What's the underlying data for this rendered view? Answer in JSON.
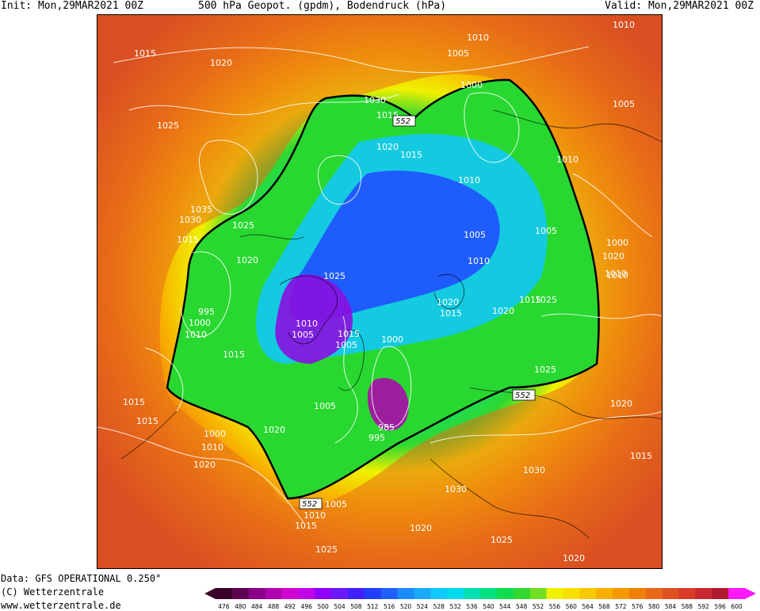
{
  "header": {
    "init": "Init: Mon,29MAR2021 00Z",
    "title": "500 hPa Geopot. (gpdm), Bodendruck (hPa)",
    "valid": "Valid: Mon,29MAR2021 00Z"
  },
  "footer": {
    "data": "Data: GFS OPERATIONAL 0.250°",
    "copyright": "(C) Wetterzentrale",
    "url": "www.wetterzentrale.de"
  },
  "colorbar": {
    "levels": [
      "476",
      "480",
      "484",
      "488",
      "492",
      "496",
      "500",
      "504",
      "508",
      "512",
      "516",
      "520",
      "524",
      "528",
      "532",
      "536",
      "540",
      "544",
      "548",
      "552",
      "556",
      "560",
      "564",
      "568",
      "572",
      "576",
      "580",
      "584",
      "588",
      "592",
      "596",
      "600"
    ],
    "colors": [
      "#3a0028",
      "#5e0050",
      "#8a0088",
      "#b000b0",
      "#d000d0",
      "#c000e8",
      "#9000ff",
      "#6a1aff",
      "#4020ff",
      "#2040ff",
      "#2060ff",
      "#1a8cff",
      "#19aaff",
      "#10c8ff",
      "#00dcee",
      "#00e0b0",
      "#00e080",
      "#10dc50",
      "#30d830",
      "#70e020",
      "#f0f000",
      "#f8e000",
      "#f8c800",
      "#f8b000",
      "#f89800",
      "#f08000",
      "#e86818",
      "#e05020",
      "#d83c28",
      "#c82830",
      "#b01830",
      "#ff1aff"
    ]
  },
  "map": {
    "contour_552_label": "552",
    "isobar_labels": [
      "1010",
      "1015",
      "1020",
      "1025",
      "1030",
      "1035",
      "1005",
      "1000",
      "995",
      "985"
    ],
    "labels": [
      {
        "text": "1015"
      },
      {
        "text": "1020"
      },
      {
        "text": "1025"
      },
      {
        "text": "1010"
      },
      {
        "text": "1005"
      },
      {
        "text": "1010"
      },
      {
        "text": "1005"
      },
      {
        "text": "1000"
      },
      {
        "text": "1030"
      },
      {
        "text": "1015"
      },
      {
        "text": "1020"
      },
      {
        "text": "1015"
      },
      {
        "text": "1010"
      },
      {
        "text": "1010"
      },
      {
        "text": "1035"
      },
      {
        "text": "1030"
      },
      {
        "text": "1025"
      },
      {
        "text": "1015"
      },
      {
        "text": "1020"
      },
      {
        "text": "1005"
      },
      {
        "text": "1005"
      },
      {
        "text": "1000"
      },
      {
        "text": "1025"
      },
      {
        "text": "1010"
      },
      {
        "text": "1010"
      },
      {
        "text": "995"
      },
      {
        "text": "1000"
      },
      {
        "text": "1010"
      },
      {
        "text": "1015"
      },
      {
        "text": "1020"
      },
      {
        "text": "1015"
      },
      {
        "text": "1025"
      },
      {
        "text": "1015"
      },
      {
        "text": "1020"
      },
      {
        "text": "1010"
      },
      {
        "text": "1015"
      },
      {
        "text": "1005"
      },
      {
        "text": "1000"
      },
      {
        "text": "1005"
      },
      {
        "text": "1015"
      },
      {
        "text": "1020"
      },
      {
        "text": "1025"
      },
      {
        "text": "985"
      },
      {
        "text": "995"
      },
      {
        "text": "1000"
      },
      {
        "text": "1010"
      },
      {
        "text": "1020"
      },
      {
        "text": "1015"
      },
      {
        "text": "1020"
      },
      {
        "text": "1030"
      },
      {
        "text": "1030"
      },
      {
        "text": "1020"
      },
      {
        "text": "1015"
      },
      {
        "text": "1005"
      },
      {
        "text": "1010"
      },
      {
        "text": "1015"
      },
      {
        "text": "1025"
      },
      {
        "text": "1020"
      },
      {
        "text": "1025"
      },
      {
        "text": "1020"
      },
      {
        "text": "1005"
      },
      {
        "text": "1010"
      }
    ]
  }
}
